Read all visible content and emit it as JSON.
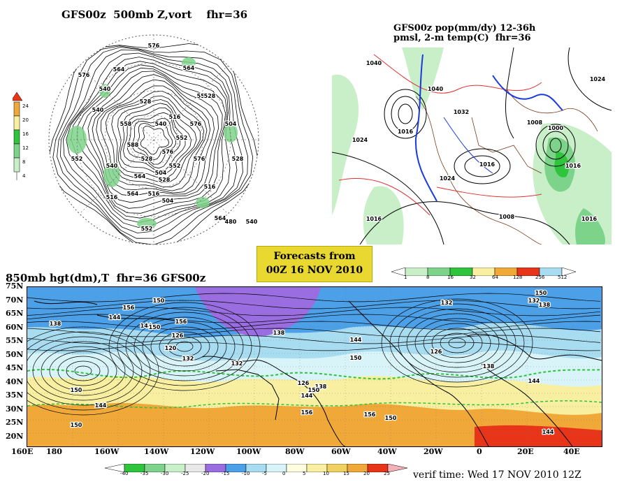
{
  "panel_500mb": {
    "title": "GFS00z  500mb Z,vort    fhr=36",
    "colorbar": [
      "24",
      "20",
      "16",
      "12",
      "8",
      "4"
    ],
    "labels": [
      "576",
      "564",
      "552",
      "540",
      "528",
      "516",
      "504",
      "588",
      "576",
      "564",
      "552",
      "540",
      "528",
      "516",
      "504",
      "576",
      "564",
      "552",
      "540",
      "528",
      "516",
      "564",
      "552",
      "540",
      "528",
      "576",
      "558",
      "576",
      "564",
      "552",
      "540",
      "528",
      "516",
      "504",
      "480"
    ]
  },
  "panel_precip": {
    "title_line1": "GFS00z pop(mm/dy) 12-36h",
    "title_line2": "pmsl, 2-m temp(C)  fhr=36",
    "colorbar": [
      "1",
      "8",
      "16",
      "32",
      "64",
      "128",
      "256",
      "512"
    ],
    "labels": [
      "1040",
      "1016",
      "1024",
      "1040",
      "1032",
      "1024",
      "1016",
      "1008",
      "1000",
      "1016",
      "1024",
      "1016",
      "1008",
      "1016"
    ]
  },
  "forecast_box": {
    "line1": "Forecasts from",
    "line2": "00Z 16 NOV 2010"
  },
  "panel_850mb": {
    "title": "850mb hgt(dm),T  fhr=36 GFS00z",
    "lat_labels": [
      "75N",
      "70N",
      "65N",
      "60N",
      "55N",
      "50N",
      "45N",
      "40N",
      "35N",
      "30N",
      "25N",
      "20N"
    ],
    "lon_labels": [
      "160E",
      "180",
      "160W",
      "140W",
      "120W",
      "100W",
      "80W",
      "60W",
      "40W",
      "20W",
      "0",
      "20E",
      "40E"
    ],
    "colorbar": [
      "-40",
      "-35",
      "-30",
      "-25",
      "-20",
      "-15",
      "-10",
      "-5",
      "0",
      "5",
      "10",
      "15",
      "20",
      "25"
    ],
    "labels": [
      "156",
      "150",
      "144",
      "138",
      "132",
      "126",
      "120",
      "144",
      "150",
      "156",
      "138",
      "144",
      "150",
      "132",
      "126",
      "138",
      "144",
      "150",
      "156",
      "150",
      "144",
      "150",
      "156",
      "132",
      "126",
      "138",
      "144",
      "150",
      "132",
      "138",
      "144",
      "150"
    ],
    "colors": {
      "cold_purple": "#9a6ee0",
      "blue": "#4ba0e8",
      "lightblue": "#a8dcf0",
      "paleblue": "#d8f4f8",
      "yellow": "#f8f0a0",
      "orange": "#f0a838",
      "red": "#e83418",
      "green": "#2ec43c"
    }
  },
  "verif_time": "verif time: Wed 17 NOV 2010 12Z"
}
